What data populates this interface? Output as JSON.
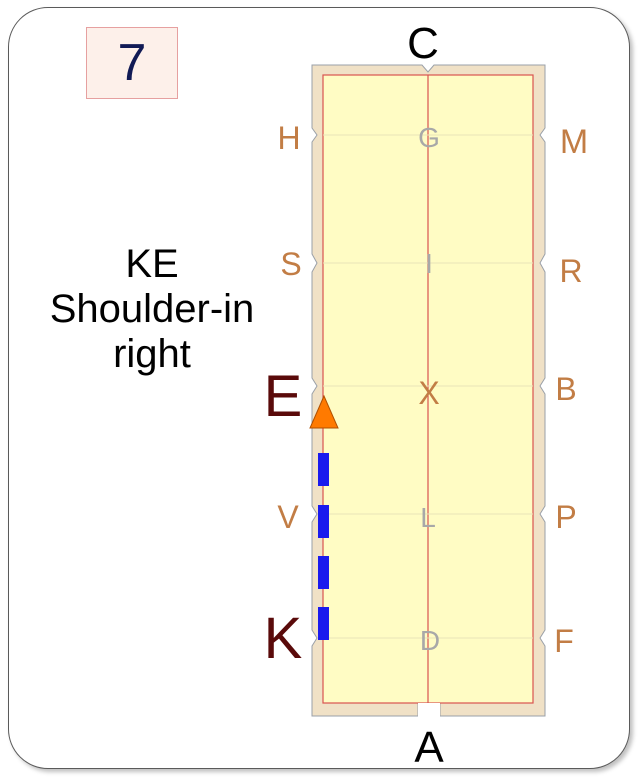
{
  "test_number": "7",
  "movement": {
    "line1": "KE",
    "line2": "Shoulder-in",
    "line3": "right"
  },
  "letters": {
    "top": "C",
    "bottom": "A",
    "left": [
      "H",
      "S",
      "E",
      "V",
      "K"
    ],
    "right": [
      "M",
      "R",
      "B",
      "P",
      "F"
    ],
    "center": [
      "G",
      "I",
      "X",
      "L",
      "D"
    ]
  },
  "colors": {
    "arena_fill": "#fffcc4",
    "arena_border": "#f0e1c6",
    "line": "#d9534f",
    "letter": "#c27d45",
    "highlight_letter": "#5a0a0a",
    "center_letter": "#a8a8a8",
    "path_dash": "#1a1aee",
    "arrow": "#ff7a00"
  }
}
